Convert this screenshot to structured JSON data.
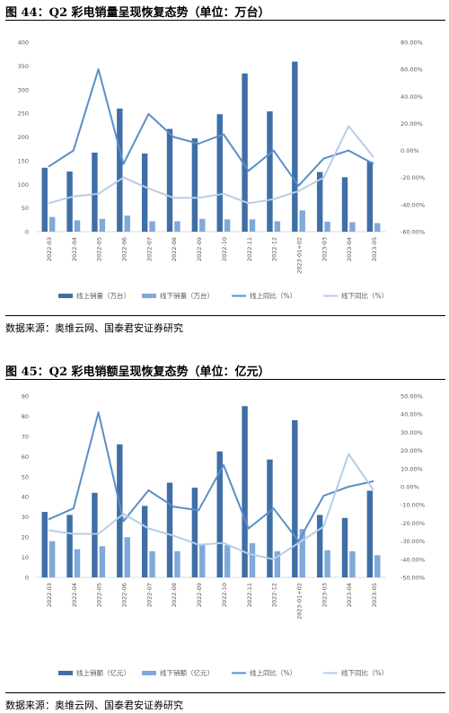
{
  "figures": [
    {
      "title": "图 44：Q2 彩电销量呈现恢复态势（单位：万台）",
      "source": "数据来源：奥维云网、国泰君安证券研究"
    },
    {
      "title": "图 45：Q2 彩电销额呈现恢复态势（单位：亿元）",
      "source": "数据来源：奥维云网、国泰君安证券研究"
    }
  ],
  "colors": {
    "online_bar": "#3f6fa6",
    "offline_bar": "#7fa9d8",
    "online_line": "#5b8ec7",
    "offline_line": "#b6cde9",
    "axis_text": "#595959",
    "baseline": "#d9d9d9"
  },
  "chart_data": [
    {
      "type": "bar",
      "categories": [
        "2022-03",
        "2022-04",
        "2022-05",
        "2022-06",
        "2022-07",
        "2022-08",
        "2022-09",
        "2022-10",
        "2022-11",
        "2022-12",
        "2023-01+02",
        "2023-03",
        "2023-04",
        "2023-05"
      ],
      "left_axis": {
        "ylim": [
          0,
          400
        ],
        "ticks": [
          "0",
          "50",
          "100",
          "150",
          "200",
          "250",
          "300",
          "350",
          "400"
        ]
      },
      "right_axis": {
        "ylim": [
          -60,
          80
        ],
        "ticks": [
          "-60.00%",
          "-40.00%",
          "-20.00%",
          "0.00%",
          "20.00%",
          "40.00%",
          "60.00%",
          "80.00%"
        ]
      },
      "series": [
        {
          "name": "线上销量（万台）",
          "kind": "bar",
          "axis": "left",
          "values": [
            135,
            127,
            167,
            260,
            165,
            217,
            197,
            248,
            334,
            254,
            359,
            126,
            115,
            148
          ]
        },
        {
          "name": "线下销量（万台）",
          "kind": "bar",
          "axis": "left",
          "values": [
            31,
            24,
            27,
            34,
            22,
            22,
            27,
            26,
            26,
            22,
            45,
            21,
            20,
            18
          ]
        },
        {
          "name": "线上同比（%）",
          "kind": "line",
          "axis": "right",
          "values": [
            -12,
            0,
            60,
            -10,
            27,
            10,
            5,
            12,
            -15,
            0,
            -26,
            -6,
            0,
            -10
          ]
        },
        {
          "name": "线下同比（%）",
          "kind": "line",
          "axis": "right",
          "values": [
            -39,
            -34,
            -32,
            -20,
            -28,
            -35,
            -35,
            -32,
            -39,
            -36,
            -30,
            -20,
            18,
            -5
          ]
        }
      ],
      "legend_position": "bottom"
    },
    {
      "type": "bar",
      "categories": [
        "2022-03",
        "2022-04",
        "2022-05",
        "2022-06",
        "2022-07",
        "2022-08",
        "2022-09",
        "2022-10",
        "2022-11",
        "2022-12",
        "2023-01+02",
        "2023-03",
        "2023-04",
        "2023-05"
      ],
      "left_axis": {
        "ylim": [
          0,
          90
        ],
        "ticks": [
          "0",
          "10",
          "20",
          "30",
          "40",
          "50",
          "60",
          "70",
          "80",
          "90"
        ]
      },
      "right_axis": {
        "ylim": [
          -50,
          50
        ],
        "ticks": [
          "-50.00%",
          "-40.00%",
          "-30.00%",
          "-20.00%",
          "-10.00%",
          "0.00%",
          "10.00%",
          "20.00%",
          "30.00%",
          "40.00%",
          "50.00%"
        ]
      },
      "series": [
        {
          "name": "线上销额（亿元）",
          "kind": "bar",
          "axis": "left",
          "values": [
            32.5,
            31,
            42,
            66,
            35.5,
            47,
            44.5,
            62.5,
            85,
            58.5,
            78,
            31,
            29.5,
            43
          ]
        },
        {
          "name": "线下销额（亿元）",
          "kind": "bar",
          "axis": "left",
          "values": [
            18,
            14,
            15.5,
            20,
            13,
            13,
            16,
            16,
            17,
            13,
            24,
            13.5,
            13,
            11
          ]
        },
        {
          "name": "线上同比（%）",
          "kind": "line",
          "axis": "right",
          "values": [
            -18,
            -12,
            41,
            -19,
            -2,
            -11,
            -13,
            12,
            -23,
            -12,
            -30,
            -5,
            0,
            3
          ]
        },
        {
          "name": "线下同比（%）",
          "kind": "line",
          "axis": "right",
          "values": [
            -24,
            -26,
            -26,
            -15,
            -23,
            -27,
            -32,
            -31,
            -37,
            -40,
            -31,
            -22,
            18,
            -2
          ]
        }
      ],
      "legend_position": "bottom"
    }
  ]
}
